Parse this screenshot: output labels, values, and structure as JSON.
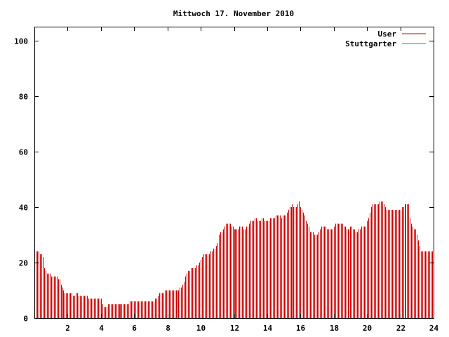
{
  "chart_data": {
    "type": "bar",
    "title": "Mittwoch 17. November 2010",
    "xlabel": "",
    "ylabel": "",
    "xlim": [
      0,
      24
    ],
    "ylim": [
      0,
      105
    ],
    "x_ticks": [
      2,
      4,
      6,
      8,
      10,
      12,
      14,
      16,
      18,
      20,
      22,
      24
    ],
    "y_ticks": [
      0,
      20,
      40,
      60,
      80,
      100
    ],
    "grid": false,
    "legend": "top-right",
    "series": [
      {
        "name": "User",
        "color": "#cc0000",
        "interval_minutes": 5,
        "values": [
          24,
          24,
          24,
          24,
          23,
          23,
          22,
          18,
          17,
          16,
          16,
          16,
          15,
          15,
          15,
          15,
          15,
          14,
          14,
          12,
          11,
          10,
          9,
          9,
          9,
          9,
          9,
          9,
          8,
          8,
          9,
          9,
          8,
          8,
          8,
          8,
          8,
          8,
          8,
          7,
          7,
          7,
          7,
          7,
          7,
          7,
          7,
          7,
          7,
          5,
          4,
          4,
          4,
          5,
          5,
          5,
          5,
          5,
          5,
          5,
          5,
          5,
          5,
          5,
          5,
          5,
          5,
          5,
          5,
          6,
          6,
          6,
          6,
          6,
          6,
          6,
          6,
          6,
          6,
          6,
          6,
          6,
          6,
          6,
          6,
          6,
          6,
          7,
          7,
          8,
          9,
          9,
          9,
          9,
          10,
          10,
          10,
          10,
          10,
          10,
          10,
          10,
          10,
          10,
          10,
          11,
          11,
          12,
          13,
          15,
          16,
          17,
          17,
          18,
          18,
          18,
          18,
          19,
          19,
          20,
          21,
          22,
          23,
          23,
          23,
          23,
          23,
          24,
          24,
          25,
          25,
          26,
          27,
          30,
          31,
          31,
          32,
          33,
          34,
          34,
          34,
          34,
          33,
          33,
          32,
          32,
          32,
          32,
          33,
          33,
          33,
          32,
          32,
          33,
          33,
          34,
          35,
          35,
          35,
          36,
          36,
          35,
          35,
          35,
          36,
          36,
          35,
          35,
          35,
          35,
          36,
          36,
          36,
          36,
          37,
          37,
          37,
          37,
          36,
          37,
          37,
          37,
          38,
          39,
          40,
          40,
          41,
          40,
          40,
          40,
          41,
          42,
          40,
          39,
          38,
          37,
          35,
          34,
          33,
          31,
          31,
          31,
          30,
          30,
          30,
          31,
          32,
          33,
          33,
          33,
          33,
          32,
          32,
          32,
          32,
          32,
          33,
          34,
          34,
          34,
          34,
          34,
          34,
          33,
          33,
          32,
          32,
          32,
          33,
          33,
          32,
          32,
          31,
          31,
          32,
          32,
          33,
          33,
          33,
          33,
          35,
          36,
          38,
          40,
          41,
          41,
          41,
          41,
          41,
          42,
          42,
          42,
          41,
          40,
          39,
          39,
          39,
          39,
          39,
          39,
          39,
          39,
          39,
          39,
          39,
          40,
          40,
          41,
          41,
          41,
          41,
          36,
          34,
          33,
          32,
          32,
          30,
          28,
          26,
          24,
          24,
          24,
          24,
          24,
          24,
          24,
          24,
          24
        ]
      },
      {
        "name": "Stuttgarter",
        "color": "#009999",
        "interval_minutes": 5,
        "values": []
      }
    ]
  }
}
